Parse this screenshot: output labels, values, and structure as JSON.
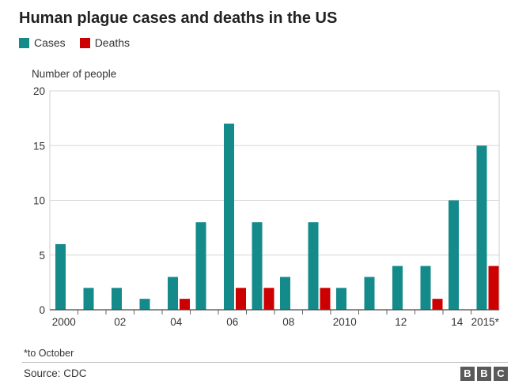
{
  "title": "Human plague cases and deaths in the US",
  "legend": {
    "cases": {
      "label": "Cases",
      "color": "#158a8a"
    },
    "deaths": {
      "label": "Deaths",
      "color": "#cc0000"
    }
  },
  "footnote": "*to October",
  "source": "Source: CDC",
  "logo": [
    "B",
    "B",
    "C"
  ],
  "chart_data": {
    "type": "bar",
    "title": "Human plague cases and deaths in the US",
    "ylabel": "Number of people",
    "xlabel": "",
    "ylim": [
      0,
      20
    ],
    "yticks": [
      0,
      5,
      10,
      15,
      20
    ],
    "categories": [
      "2000",
      "2001",
      "2002",
      "2003",
      "2004",
      "2005",
      "2006",
      "2007",
      "2008",
      "2009",
      "2010",
      "2011",
      "2012",
      "2013",
      "2014",
      "2015"
    ],
    "xtick_labels": [
      "2000",
      "",
      "02",
      "",
      "04",
      "",
      "06",
      "",
      "08",
      "",
      "2010",
      "",
      "12",
      "",
      "14",
      "2015*"
    ],
    "series": [
      {
        "name": "Cases",
        "color": "#158a8a",
        "values": [
          6,
          2,
          2,
          1,
          3,
          8,
          17,
          8,
          3,
          8,
          2,
          3,
          4,
          4,
          10,
          15
        ]
      },
      {
        "name": "Deaths",
        "color": "#cc0000",
        "values": [
          0,
          0,
          0,
          0,
          1,
          0,
          2,
          2,
          0,
          2,
          0,
          0,
          0,
          1,
          0,
          4
        ]
      }
    ],
    "grid": true,
    "legend_position": "top-left"
  }
}
